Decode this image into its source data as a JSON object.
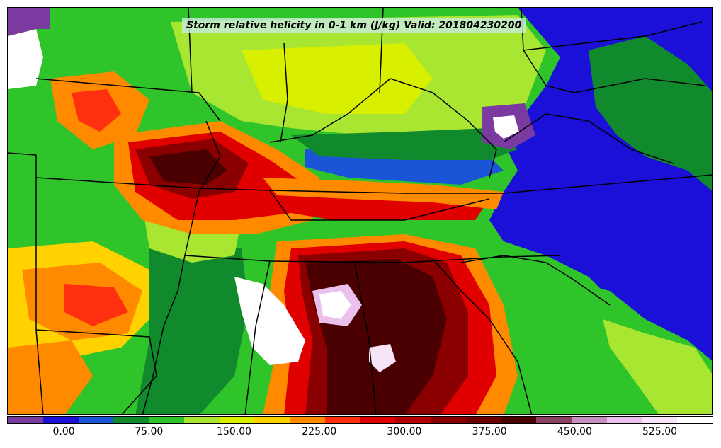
{
  "title": "Storm relative helicity in 0-1 km (J/kg) Valid: 201804230200",
  "colorbar": {
    "colors": [
      "#7b3aa0",
      "#1a10d8",
      "#1a55d8",
      "#118a2e",
      "#2fc42a",
      "#a8e632",
      "#d8f000",
      "#ffd200",
      "#ff8a00",
      "#ff3010",
      "#e00000",
      "#b40000",
      "#8a0000",
      "#6a0000",
      "#4a0000",
      "#8a4060",
      "#c890c0",
      "#ecc0ec",
      "#f8e4f8",
      "#ffffff"
    ],
    "ticks": [
      "0.00",
      "75.00",
      "150.00",
      "225.00",
      "300.00",
      "375.00",
      "450.00",
      "525.00"
    ],
    "tick_fractions": [
      0.0803,
      0.2009,
      0.3215,
      0.4421,
      0.5626,
      0.6832,
      0.8038,
      0.9243
    ]
  }
}
